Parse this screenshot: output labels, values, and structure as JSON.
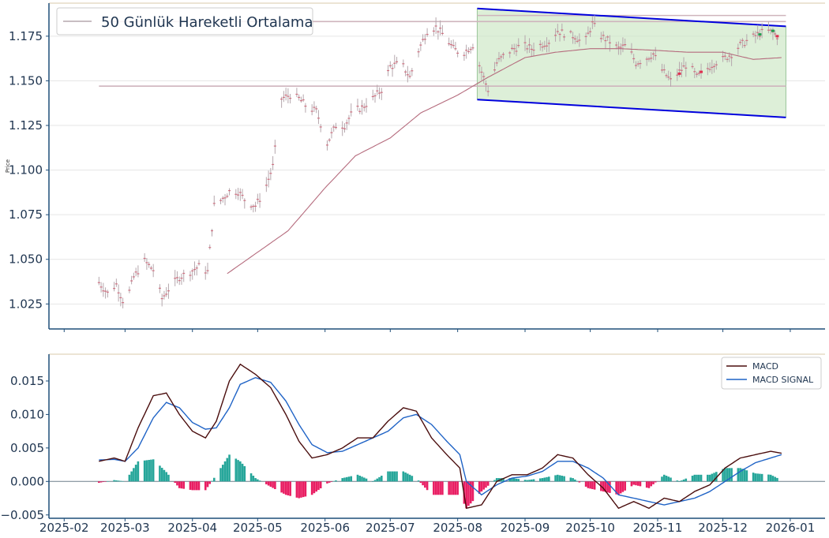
{
  "colors": {
    "axis": "#1f4e79",
    "tick_text": "#1f3550",
    "grid": "#e6e6e6",
    "frame_top": "#d8c9a8",
    "candle": "#b5a7ad",
    "ma_line": "#b56b7d",
    "hline": "#cfb4bd",
    "channel": "#0000dd",
    "channel_fill": "#cfe8c8",
    "macd": "#4a0d0d",
    "signal": "#1f63c6",
    "hist_pos": "#26a69a",
    "hist_neg": "#e91e63"
  },
  "chart_data": [
    {
      "type": "candlestick",
      "ylabel": "Price",
      "ylim": [
        1.011,
        1.1935
      ],
      "yticks": [
        "1.025",
        "1.050",
        "1.075",
        "1.100",
        "1.125",
        "1.150",
        "1.175"
      ],
      "legend": {
        "entries": [
          "50 Günlük Hareketli Ortalama"
        ],
        "placement": "top-left"
      },
      "grid": true,
      "horizontal_levels": [
        1.1866,
        1.1832,
        1.147
      ],
      "channel": {
        "upper": [
          [
            "2025-08-10",
            1.1905
          ],
          [
            "2025-12-30",
            1.1805
          ]
        ],
        "lower": [
          [
            "2025-08-10",
            1.1395
          ],
          [
            "2025-12-30",
            1.1295
          ]
        ]
      },
      "ohlc_anchors": [
        [
          "2025-02-17",
          1.037
        ],
        [
          "2025-02-21",
          1.031
        ],
        [
          "2025-02-25",
          1.036
        ],
        [
          "2025-03-01",
          1.024
        ],
        [
          "2025-03-05",
          1.04
        ],
        [
          "2025-03-10",
          1.049
        ],
        [
          "2025-03-14",
          1.044
        ],
        [
          "2025-03-18",
          1.028
        ],
        [
          "2025-03-22",
          1.035
        ],
        [
          "2025-03-26",
          1.04
        ],
        [
          "2025-03-31",
          1.043
        ],
        [
          "2025-04-04",
          1.046
        ],
        [
          "2025-04-08",
          1.043
        ],
        [
          "2025-04-11",
          1.08
        ],
        [
          "2025-04-14",
          1.083
        ],
        [
          "2025-04-18",
          1.088
        ],
        [
          "2025-04-22",
          1.088
        ],
        [
          "2025-04-26",
          1.082
        ],
        [
          "2025-04-30",
          1.08
        ],
        [
          "2025-05-04",
          1.088
        ],
        [
          "2025-05-08",
          1.102
        ],
        [
          "2025-05-12",
          1.14
        ],
        [
          "2025-05-16",
          1.142
        ],
        [
          "2025-05-20",
          1.14
        ],
        [
          "2025-05-24",
          1.135
        ],
        [
          "2025-05-28",
          1.133
        ],
        [
          "2025-06-02",
          1.115
        ],
        [
          "2025-06-06",
          1.125
        ],
        [
          "2025-06-10",
          1.125
        ],
        [
          "2025-06-14",
          1.133
        ],
        [
          "2025-06-18",
          1.135
        ],
        [
          "2025-06-23",
          1.14
        ],
        [
          "2025-06-27",
          1.145
        ],
        [
          "2025-07-01",
          1.158
        ],
        [
          "2025-07-06",
          1.16
        ],
        [
          "2025-07-10",
          1.152
        ],
        [
          "2025-07-14",
          1.167
        ],
        [
          "2025-07-18",
          1.178
        ],
        [
          "2025-07-22",
          1.18
        ],
        [
          "2025-07-26",
          1.175
        ],
        [
          "2025-07-30",
          1.168
        ],
        [
          "2025-08-03",
          1.165
        ],
        [
          "2025-08-08",
          1.17
        ],
        [
          "2025-08-12",
          1.155
        ],
        [
          "2025-08-15",
          1.145
        ],
        [
          "2025-08-19",
          1.16
        ],
        [
          "2025-08-23",
          1.165
        ],
        [
          "2025-08-27",
          1.168
        ],
        [
          "2025-08-31",
          1.17
        ],
        [
          "2025-09-04",
          1.168
        ],
        [
          "2025-09-08",
          1.17
        ],
        [
          "2025-09-12",
          1.172
        ],
        [
          "2025-09-16",
          1.178
        ],
        [
          "2025-09-20",
          1.176
        ],
        [
          "2025-09-24",
          1.175
        ],
        [
          "2025-09-28",
          1.17
        ],
        [
          "2025-10-02",
          1.182
        ],
        [
          "2025-10-06",
          1.175
        ],
        [
          "2025-10-10",
          1.172
        ],
        [
          "2025-10-14",
          1.168
        ],
        [
          "2025-10-18",
          1.17
        ],
        [
          "2025-10-22",
          1.16
        ],
        [
          "2025-10-26",
          1.162
        ],
        [
          "2025-10-30",
          1.165
        ],
        [
          "2025-11-03",
          1.156
        ],
        [
          "2025-11-07",
          1.15
        ],
        [
          "2025-11-11",
          1.155
        ],
        [
          "2025-11-15",
          1.16
        ],
        [
          "2025-11-19",
          1.152
        ],
        [
          "2025-11-23",
          1.156
        ],
        [
          "2025-11-27",
          1.16
        ],
        [
          "2025-12-01",
          1.162
        ],
        [
          "2025-12-05",
          1.165
        ],
        [
          "2025-12-09",
          1.17
        ],
        [
          "2025-12-13",
          1.173
        ],
        [
          "2025-12-17",
          1.176
        ],
        [
          "2025-12-21",
          1.178
        ],
        [
          "2025-12-24",
          1.177
        ],
        [
          "2025-12-26",
          1.175
        ]
      ],
      "ma50": [
        [
          "2025-04-17",
          1.042
        ],
        [
          "2025-05-01",
          1.054
        ],
        [
          "2025-05-15",
          1.066
        ],
        [
          "2025-06-01",
          1.09
        ],
        [
          "2025-06-15",
          1.108
        ],
        [
          "2025-07-01",
          1.118
        ],
        [
          "2025-07-15",
          1.132
        ],
        [
          "2025-08-01",
          1.142
        ],
        [
          "2025-08-15",
          1.152
        ],
        [
          "2025-09-01",
          1.163
        ],
        [
          "2025-09-15",
          1.166
        ],
        [
          "2025-10-01",
          1.168
        ],
        [
          "2025-10-15",
          1.168
        ],
        [
          "2025-11-01",
          1.167
        ],
        [
          "2025-11-15",
          1.166
        ],
        [
          "2025-12-01",
          1.166
        ],
        [
          "2025-12-15",
          1.162
        ],
        [
          "2025-12-28",
          1.163
        ]
      ]
    },
    {
      "type": "line",
      "ylim": [
        -0.0055,
        0.019
      ],
      "yticks": [
        "−0.005",
        "0.000",
        "0.005",
        "0.010",
        "0.015"
      ],
      "xticks": [
        "2025-02",
        "2025-03",
        "2025-04",
        "2025-05",
        "2025-06",
        "2025-07",
        "2025-08",
        "2025-09",
        "2025-10",
        "2025-11",
        "2025-12",
        "2026-01"
      ],
      "xlim": [
        "2025-01-25",
        "2026-01-17"
      ],
      "legend": {
        "entries": [
          "MACD",
          "MACD SIGNAL"
        ],
        "placement": "top-right"
      },
      "series": [
        {
          "name": "MACD",
          "points": [
            [
              "2025-02-17",
              0.003
            ],
            [
              "2025-02-24",
              0.0035
            ],
            [
              "2025-03-01",
              0.003
            ],
            [
              "2025-03-07",
              0.008
            ],
            [
              "2025-03-14",
              0.0128
            ],
            [
              "2025-03-20",
              0.0132
            ],
            [
              "2025-03-26",
              0.01
            ],
            [
              "2025-04-01",
              0.0075
            ],
            [
              "2025-04-07",
              0.0065
            ],
            [
              "2025-04-12",
              0.009
            ],
            [
              "2025-04-18",
              0.015
            ],
            [
              "2025-04-23",
              0.0175
            ],
            [
              "2025-04-30",
              0.016
            ],
            [
              "2025-05-07",
              0.014
            ],
            [
              "2025-05-14",
              0.01
            ],
            [
              "2025-05-20",
              0.006
            ],
            [
              "2025-05-26",
              0.0035
            ],
            [
              "2025-06-02",
              0.004
            ],
            [
              "2025-06-09",
              0.005
            ],
            [
              "2025-06-16",
              0.0065
            ],
            [
              "2025-06-23",
              0.0065
            ],
            [
              "2025-06-30",
              0.009
            ],
            [
              "2025-07-07",
              0.011
            ],
            [
              "2025-07-13",
              0.0105
            ],
            [
              "2025-07-20",
              0.0065
            ],
            [
              "2025-07-27",
              0.004
            ],
            [
              "2025-08-02",
              0.002
            ],
            [
              "2025-08-05",
              -0.004
            ],
            [
              "2025-08-12",
              -0.0035
            ],
            [
              "2025-08-19",
              0.0
            ],
            [
              "2025-08-26",
              0.001
            ],
            [
              "2025-09-02",
              0.001
            ],
            [
              "2025-09-09",
              0.002
            ],
            [
              "2025-09-16",
              0.004
            ],
            [
              "2025-09-23",
              0.0035
            ],
            [
              "2025-09-30",
              0.001
            ],
            [
              "2025-10-07",
              -0.001
            ],
            [
              "2025-10-14",
              -0.004
            ],
            [
              "2025-10-21",
              -0.003
            ],
            [
              "2025-10-28",
              -0.004
            ],
            [
              "2025-11-04",
              -0.0025
            ],
            [
              "2025-11-11",
              -0.003
            ],
            [
              "2025-11-18",
              -0.0015
            ],
            [
              "2025-11-25",
              -0.0005
            ],
            [
              "2025-12-02",
              0.002
            ],
            [
              "2025-12-09",
              0.0035
            ],
            [
              "2025-12-16",
              0.004
            ],
            [
              "2025-12-23",
              0.0045
            ],
            [
              "2025-12-28",
              0.0042
            ]
          ]
        },
        {
          "name": "MACD SIGNAL",
          "points": [
            [
              "2025-02-17",
              0.0032
            ],
            [
              "2025-02-24",
              0.0033
            ],
            [
              "2025-03-01",
              0.003
            ],
            [
              "2025-03-07",
              0.005
            ],
            [
              "2025-03-14",
              0.0095
            ],
            [
              "2025-03-20",
              0.0118
            ],
            [
              "2025-03-26",
              0.011
            ],
            [
              "2025-04-01",
              0.0088
            ],
            [
              "2025-04-07",
              0.0078
            ],
            [
              "2025-04-12",
              0.008
            ],
            [
              "2025-04-18",
              0.011
            ],
            [
              "2025-04-23",
              0.0145
            ],
            [
              "2025-04-30",
              0.0155
            ],
            [
              "2025-05-07",
              0.0148
            ],
            [
              "2025-05-14",
              0.012
            ],
            [
              "2025-05-20",
              0.0085
            ],
            [
              "2025-05-26",
              0.0055
            ],
            [
              "2025-06-02",
              0.0043
            ],
            [
              "2025-06-09",
              0.0045
            ],
            [
              "2025-06-16",
              0.0055
            ],
            [
              "2025-06-23",
              0.0065
            ],
            [
              "2025-06-30",
              0.0075
            ],
            [
              "2025-07-07",
              0.0095
            ],
            [
              "2025-07-13",
              0.01
            ],
            [
              "2025-07-20",
              0.0085
            ],
            [
              "2025-07-27",
              0.006
            ],
            [
              "2025-08-02",
              0.004
            ],
            [
              "2025-08-05",
              0.0
            ],
            [
              "2025-08-12",
              -0.002
            ],
            [
              "2025-08-19",
              -0.0005
            ],
            [
              "2025-08-26",
              0.0005
            ],
            [
              "2025-09-02",
              0.0008
            ],
            [
              "2025-09-09",
              0.0015
            ],
            [
              "2025-09-16",
              0.003
            ],
            [
              "2025-09-23",
              0.003
            ],
            [
              "2025-09-30",
              0.002
            ],
            [
              "2025-10-07",
              0.0005
            ],
            [
              "2025-10-14",
              -0.002
            ],
            [
              "2025-10-21",
              -0.0025
            ],
            [
              "2025-10-28",
              -0.003
            ],
            [
              "2025-11-04",
              -0.0035
            ],
            [
              "2025-11-11",
              -0.003
            ],
            [
              "2025-11-18",
              -0.0025
            ],
            [
              "2025-11-25",
              -0.0015
            ],
            [
              "2025-12-02",
              0.0
            ],
            [
              "2025-12-09",
              0.0015
            ],
            [
              "2025-12-16",
              0.0028
            ],
            [
              "2025-12-23",
              0.0035
            ],
            [
              "2025-12-28",
              0.004
            ]
          ]
        }
      ]
    }
  ]
}
